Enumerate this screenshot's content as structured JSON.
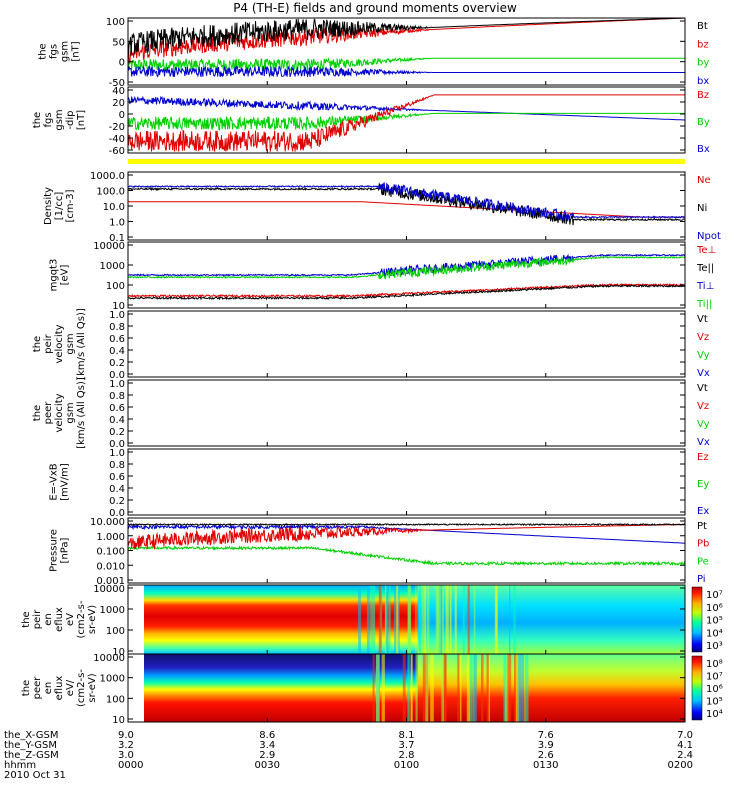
{
  "title": "P4 (TH-E) fields and ground moments overview",
  "colors": {
    "black": "#000000",
    "red": "#e00000",
    "green": "#00d000",
    "blue": "#0000d0",
    "yellow": "#ffff00"
  },
  "chart_data": [
    {
      "id": "fgs_gsm",
      "type": "line",
      "ylabel": [
        "the",
        "fgs",
        "gsm",
        "[nT]"
      ],
      "yticks": [
        "100",
        "50",
        "0",
        "-50"
      ],
      "ylim": [
        -50,
        100
      ],
      "legend": [
        {
          "name": "Bt",
          "color": "black"
        },
        {
          "name": "bz",
          "color": "red"
        },
        {
          "name": "by",
          "color": "green"
        },
        {
          "name": "bx",
          "color": "blue"
        }
      ]
    },
    {
      "id": "fgs_gse",
      "type": "line",
      "ylabel": [
        "the",
        "fgs",
        "gsm",
        "-dip",
        "[nT]"
      ],
      "yticks": [
        "40",
        "20",
        "0",
        "-20",
        "-40",
        "-60"
      ],
      "ylim": [
        -60,
        40
      ],
      "legend": [
        {
          "name": "Bz",
          "color": "red"
        },
        {
          "name": "By",
          "color": "green"
        },
        {
          "name": "Bx",
          "color": "blue"
        }
      ]
    },
    {
      "id": "density",
      "type": "line",
      "scale": "log",
      "ylabel": [
        "Density",
        "[1/cc]",
        "[cm-3]"
      ],
      "yticks": [
        "1000.0",
        "100.0",
        "10.0",
        "1.0",
        "0.1"
      ],
      "ylim": [
        0.1,
        1000
      ],
      "legend": [
        {
          "name": "Ne",
          "color": "red"
        },
        {
          "name": "Ni",
          "color": "black"
        },
        {
          "name": "Npot",
          "color": "blue"
        }
      ]
    },
    {
      "id": "temperature",
      "type": "line",
      "scale": "log",
      "ylabel": [
        "mgqt3",
        "[eV]"
      ],
      "yticks": [
        "10000",
        "1000",
        "100",
        "10"
      ],
      "ylim": [
        10,
        10000
      ],
      "legend": [
        {
          "name": "Te⊥",
          "color": "red"
        },
        {
          "name": "Te||",
          "color": "black"
        },
        {
          "name": "Ti⊥",
          "color": "blue"
        },
        {
          "name": "Ti||",
          "color": "green"
        }
      ]
    },
    {
      "id": "peir_velocity",
      "type": "line",
      "ylabel": [
        "the",
        "peir",
        "velocity",
        "gsm",
        "[km/s (All Qs)]"
      ],
      "yticks": [
        "1.0",
        "0.8",
        "0.6",
        "0.4",
        "0.2",
        "0.0"
      ],
      "ylim": [
        0,
        1
      ],
      "legend": [
        {
          "name": "Vt",
          "color": "black"
        },
        {
          "name": "Vz",
          "color": "red"
        },
        {
          "name": "Vy",
          "color": "green"
        },
        {
          "name": "Vx",
          "color": "blue"
        }
      ]
    },
    {
      "id": "peer_velocity",
      "type": "line",
      "ylabel": [
        "the",
        "peer",
        "velocity",
        "gsm",
        "[km/s (All Qs)]"
      ],
      "yticks": [
        "1.0",
        "0.8",
        "0.6",
        "0.4",
        "0.2",
        "0.0"
      ],
      "ylim": [
        0,
        1
      ],
      "legend": [
        {
          "name": "Vt",
          "color": "black"
        },
        {
          "name": "Vz",
          "color": "red"
        },
        {
          "name": "Vy",
          "color": "green"
        },
        {
          "name": "Vx",
          "color": "blue"
        }
      ]
    },
    {
      "id": "efield",
      "type": "line",
      "ylabel": [
        "E=-VxB",
        "[mV/m]"
      ],
      "yticks": [
        "1.0",
        "0.8",
        "0.6",
        "0.4",
        "0.2",
        "0.0"
      ],
      "ylim": [
        0,
        1
      ],
      "legend": [
        {
          "name": "Ez",
          "color": "red"
        },
        {
          "name": "Ey",
          "color": "green"
        },
        {
          "name": "Ex",
          "color": "blue"
        }
      ]
    },
    {
      "id": "pressure",
      "type": "line",
      "scale": "log",
      "ylabel": [
        "Pressure",
        "[nPa]"
      ],
      "yticks": [
        "10.000",
        "1.000",
        "0.100",
        "0.010",
        "0.001"
      ],
      "ylim": [
        0.001,
        10
      ],
      "legend": [
        {
          "name": "Pt",
          "color": "black"
        },
        {
          "name": "Pb",
          "color": "red"
        },
        {
          "name": "Pe",
          "color": "green"
        },
        {
          "name": "Pi",
          "color": "blue"
        }
      ]
    },
    {
      "id": "peir_spec",
      "type": "heatmap",
      "ylabel": [
        "the",
        "peir",
        "en",
        "eflux",
        "eV",
        "(cm2-s-",
        "sr-eV)"
      ],
      "yticks": [
        "10000",
        "1000",
        "100",
        "10"
      ],
      "colorbar_ticks": [
        "10⁷",
        "10⁶",
        "10⁵",
        "10⁴",
        "10³"
      ]
    },
    {
      "id": "peer_spec",
      "type": "heatmap",
      "ylabel": [
        "the",
        "peer",
        "en",
        "eflux",
        "eV/",
        "(cm2-s-",
        "sr-eV)"
      ],
      "yticks": [
        "10000",
        "1000",
        "100",
        "10"
      ],
      "colorbar_ticks": [
        "10⁸",
        "10⁷",
        "10⁶",
        "10⁵",
        "10⁴"
      ]
    }
  ],
  "xaxis": {
    "row_labels": [
      "the_X-GSM",
      "the_Y-GSM",
      "the_Z-GSM",
      "hhmm",
      "2010 Oct 31"
    ],
    "ticks": [
      {
        "x": "9.0",
        "y": "3.2",
        "z": "3.0",
        "hhmm": "0000"
      },
      {
        "x": "8.6",
        "y": "3.4",
        "z": "2.9",
        "hhmm": "0030"
      },
      {
        "x": "8.1",
        "y": "3.7",
        "z": "2.8",
        "hhmm": "0100"
      },
      {
        "x": "7.6",
        "y": "3.9",
        "z": "2.6",
        "hhmm": "0130"
      },
      {
        "x": "7.0",
        "y": "4.1",
        "z": "2.4",
        "hhmm": "0200"
      }
    ]
  }
}
